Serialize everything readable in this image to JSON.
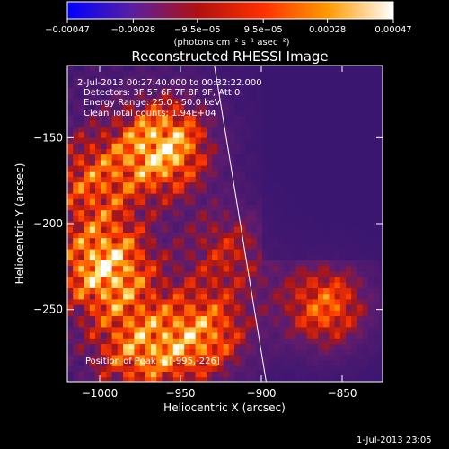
{
  "chart_data": {
    "type": "heatmap",
    "title": "Reconstructed RHESSI Image",
    "xlabel": "Heliocentric X (arcsec)",
    "ylabel": "Heliocentric Y (arcsec)",
    "xlim": [
      -1020,
      -825
    ],
    "ylim": [
      -292,
      -108
    ],
    "x_ticks": [
      -1000,
      -950,
      -900,
      -850
    ],
    "x_tick_labels": [
      "−1000",
      "−950",
      "−900",
      "−850"
    ],
    "y_ticks": [
      -150,
      -200,
      -250
    ],
    "y_tick_labels": [
      "−150",
      "−200",
      "−250"
    ],
    "colorbar": {
      "range": [
        -0.00047,
        0.00047
      ],
      "ticks": [
        -0.00047,
        -0.00028,
        -9.5e-05,
        9.5e-05,
        0.00028,
        0.00047
      ],
      "tick_labels": [
        "−0.00047",
        "−0.00028",
        "−9.5e−05",
        "9.5e−05",
        "0.00028",
        "0.00047"
      ],
      "unit_label": "(photons cm⁻² s⁻¹ asec⁻²)",
      "colors": [
        "#0000ff",
        "#5a1fa0",
        "#b01010",
        "#ff3000",
        "#ff9a00",
        "#ffffff"
      ]
    },
    "grid": false,
    "limb_line": [
      [
        -929,
        -108
      ],
      [
        -897,
        -292
      ]
    ],
    "info_lines": [
      "2-Jul-2013 00:27:40.000 to 00:32:22.000",
      "Detectors: 3F 5F 6F 7F 8F 9F, Att 0",
      "Energy Range: 25.0 - 50.0 keV",
      "Clean     Total counts: 1.94E+04"
    ],
    "peak_text": "Position of Peak = [-995,-226]",
    "sources": [
      {
        "x": -960,
        "y": -155,
        "intensity": 1.0
      },
      {
        "x": -996,
        "y": -226,
        "intensity": 0.95
      },
      {
        "x": -860,
        "y": -248,
        "intensity": 0.8
      },
      {
        "x": -935,
        "y": -265,
        "intensity": 0.75
      },
      {
        "x": -975,
        "y": -275,
        "intensity": 0.7
      },
      {
        "x": -1005,
        "y": -175,
        "intensity": 0.55
      },
      {
        "x": -920,
        "y": -215,
        "intensity": 0.5
      }
    ]
  },
  "footer": {
    "timestamp": "1-Jul-2013 23:05"
  }
}
